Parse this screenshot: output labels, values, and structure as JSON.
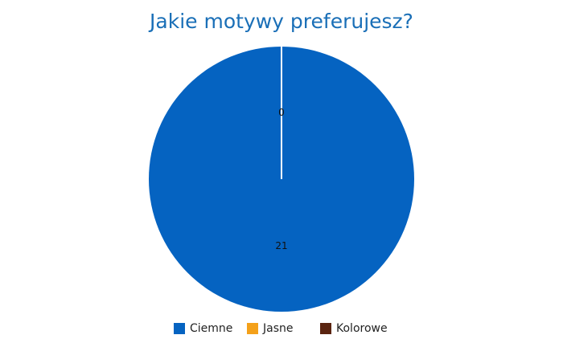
{
  "chart_data": {
    "type": "pie",
    "title": "Jakie motywy preferujesz?",
    "categories": [
      "Ciemne",
      "Jasne",
      "Kolorowe"
    ],
    "values": [
      21,
      0,
      0
    ],
    "data_labels": [
      "21",
      "0",
      ""
    ],
    "colors": [
      "#0563c1",
      "#f4a11a",
      "#5a2410"
    ],
    "legend_position": "bottom"
  }
}
